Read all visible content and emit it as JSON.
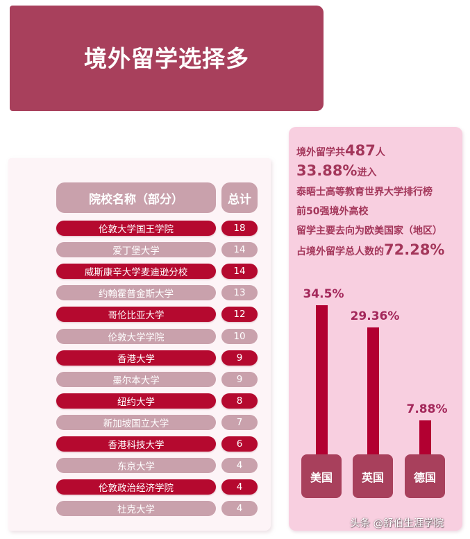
{
  "banner": {
    "title": "境外留学选择多"
  },
  "table": {
    "headers": {
      "name": "院校名称（部分）",
      "total": "总计"
    },
    "rows": [
      {
        "name": "伦敦大学国王学院",
        "total": "18",
        "style": "dark"
      },
      {
        "name": "爱丁堡大学",
        "total": "14",
        "style": "light"
      },
      {
        "name": "威斯康辛大学麦迪逊分校",
        "total": "14",
        "style": "dark"
      },
      {
        "name": "约翰霍普金斯大学",
        "total": "13",
        "style": "light"
      },
      {
        "name": "哥伦比亚大学",
        "total": "12",
        "style": "dark"
      },
      {
        "name": "伦敦大学学院",
        "total": "10",
        "style": "light"
      },
      {
        "name": "香港大学",
        "total": "9",
        "style": "dark"
      },
      {
        "name": "墨尔本大学",
        "total": "9",
        "style": "light"
      },
      {
        "name": "纽约大学",
        "total": "8",
        "style": "dark"
      },
      {
        "name": "新加坡国立大学",
        "total": "7",
        "style": "light"
      },
      {
        "name": "香港科技大学",
        "total": "6",
        "style": "dark"
      },
      {
        "name": "东京大学",
        "total": "4",
        "style": "light"
      },
      {
        "name": "伦敦政治经济学院",
        "total": "4",
        "style": "dark"
      },
      {
        "name": "杜克大学",
        "total": "4",
        "style": "light"
      }
    ]
  },
  "stats": {
    "line1_prefix": "境外留学共",
    "line1_number": "487",
    "line1_suffix": "人",
    "line2_number": "33.88%",
    "line2_suffix": "进入",
    "line3": "泰晤士高等教育世界大学排行榜",
    "line4": "前50强境外高校",
    "line5": "留学主要去向为欧美国家（地区）",
    "line6_prefix": "占境外留学总人数的",
    "line6_number": "72.28%"
  },
  "chart_data": {
    "type": "bar",
    "title": "",
    "categories": [
      "美国",
      "英国",
      "德国"
    ],
    "values": [
      34.5,
      29.36,
      7.88
    ],
    "value_labels": [
      "34.5%",
      "29.36%",
      "7.88%"
    ],
    "xlabel": "",
    "ylabel": "",
    "grid": false,
    "legend": "none"
  },
  "watermark": "头条 @舒伯生涯学院",
  "colors": {
    "banner": "#a8405c",
    "row_dark": "#b5092f",
    "row_light": "#c9a1ac",
    "right_panel": "#f8cfe0",
    "bar": "#b20031",
    "stat_text": "#a3365a"
  }
}
